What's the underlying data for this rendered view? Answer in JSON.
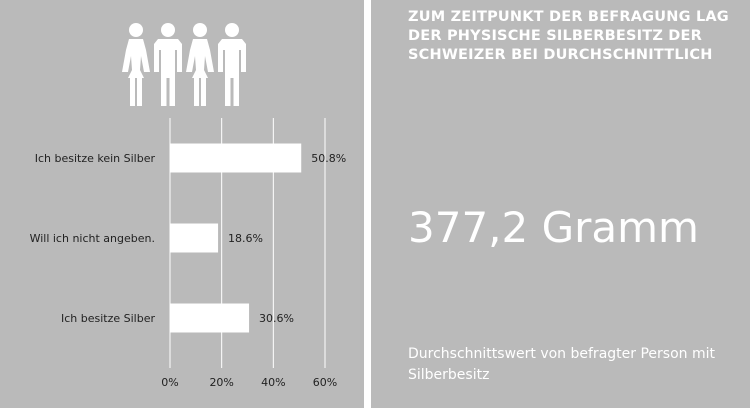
{
  "icon": "group-of-people-icon",
  "colors": {
    "panel_background": "#bababa",
    "bar_fill": "#ffffff",
    "gridline": "#ffffff",
    "text_dark": "#222222",
    "text_light": "#ffffff"
  },
  "chart_data": {
    "type": "bar",
    "orientation": "horizontal",
    "categories": [
      "Ich besitze kein Silber",
      "Will ich nicht angeben.",
      "Ich besitze Silber"
    ],
    "values": [
      50.8,
      18.6,
      30.6
    ],
    "value_labels": [
      "50.8%",
      "18.6%",
      "30.6%"
    ],
    "xlim": [
      0,
      60
    ],
    "x_ticks": [
      0,
      20,
      40,
      60
    ],
    "x_tick_labels": [
      "0%",
      "20%",
      "40%",
      "60%"
    ],
    "grid": true
  },
  "summary": {
    "headline": "ZUM ZEITPUNKT DER BEFRAGUNG LAG DER PHYSISCHE SILBERBESITZ DER SCHWEIZER BEI DURCHSCHNITTLICH",
    "value": "377,2 Gramm",
    "caption": "Durchschnittswert von befragter Person mit Silberbesitz"
  }
}
